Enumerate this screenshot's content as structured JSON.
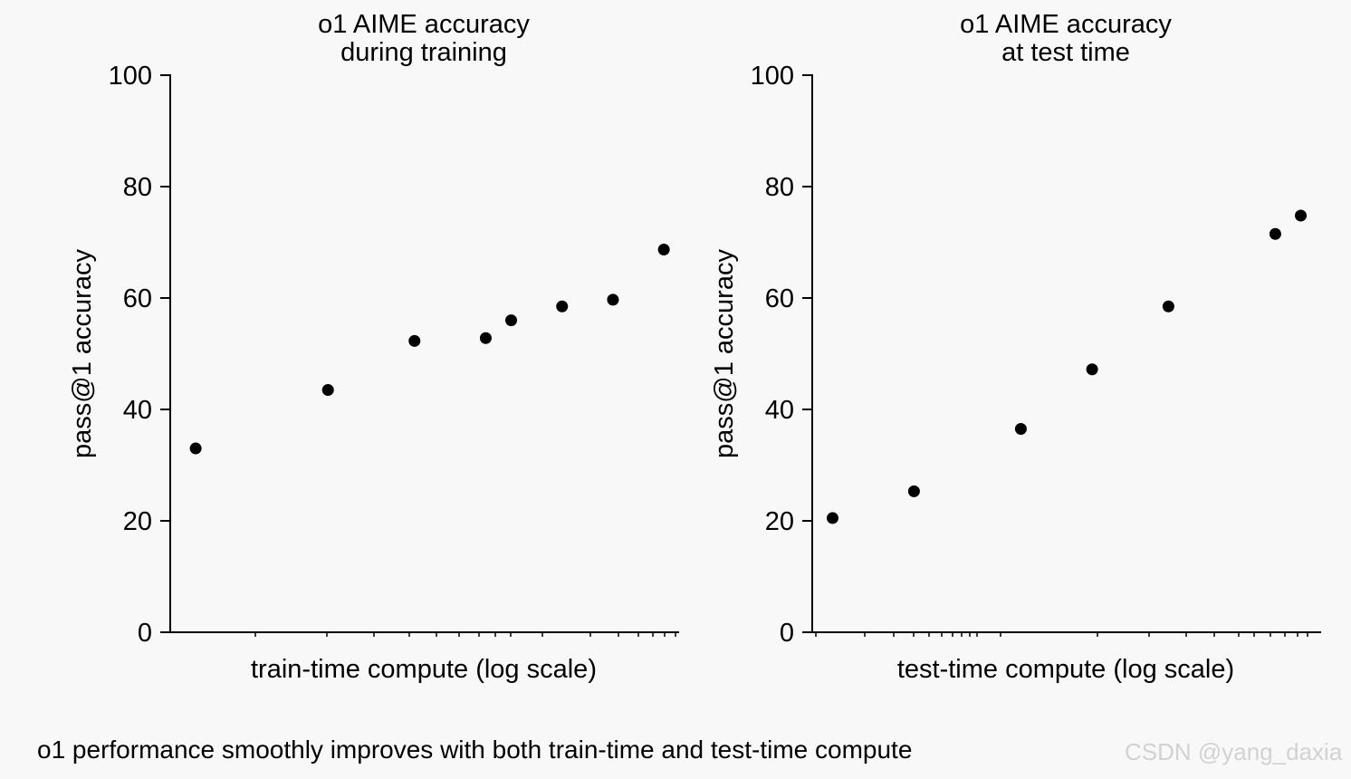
{
  "caption": "o1 performance smoothly improves with both train-time and test-time compute",
  "watermark": "CSDN @yang_daxia",
  "chart_data": [
    {
      "type": "scatter",
      "title": [
        "o1 AIME accuracy",
        "during training"
      ],
      "xlabel": "train-time compute (log scale)",
      "ylabel": "pass@1 accuracy",
      "ylim": [
        0,
        100
      ],
      "yticks": [
        0,
        20,
        40,
        60,
        80,
        100
      ],
      "x_scale": "log",
      "grid": false,
      "x": [
        0.05,
        0.31,
        0.48,
        0.62,
        0.67,
        0.77,
        0.87,
        0.97
      ],
      "y": [
        33,
        43.5,
        52.3,
        52.8,
        56,
        58.5,
        59.7,
        68.7
      ]
    },
    {
      "type": "scatter",
      "title": [
        "o1 AIME accuracy",
        "at test time"
      ],
      "xlabel": "test-time compute (log scale)",
      "ylabel": "pass@1 accuracy",
      "ylim": [
        0,
        100
      ],
      "yticks": [
        0,
        20,
        40,
        60,
        80,
        100
      ],
      "x_scale": "log",
      "grid": false,
      "x": [
        0.04,
        0.2,
        0.41,
        0.55,
        0.7,
        0.91,
        0.96
      ],
      "y": [
        20.5,
        25.3,
        36.5,
        47.2,
        58.5,
        71.5,
        74.8
      ]
    }
  ]
}
